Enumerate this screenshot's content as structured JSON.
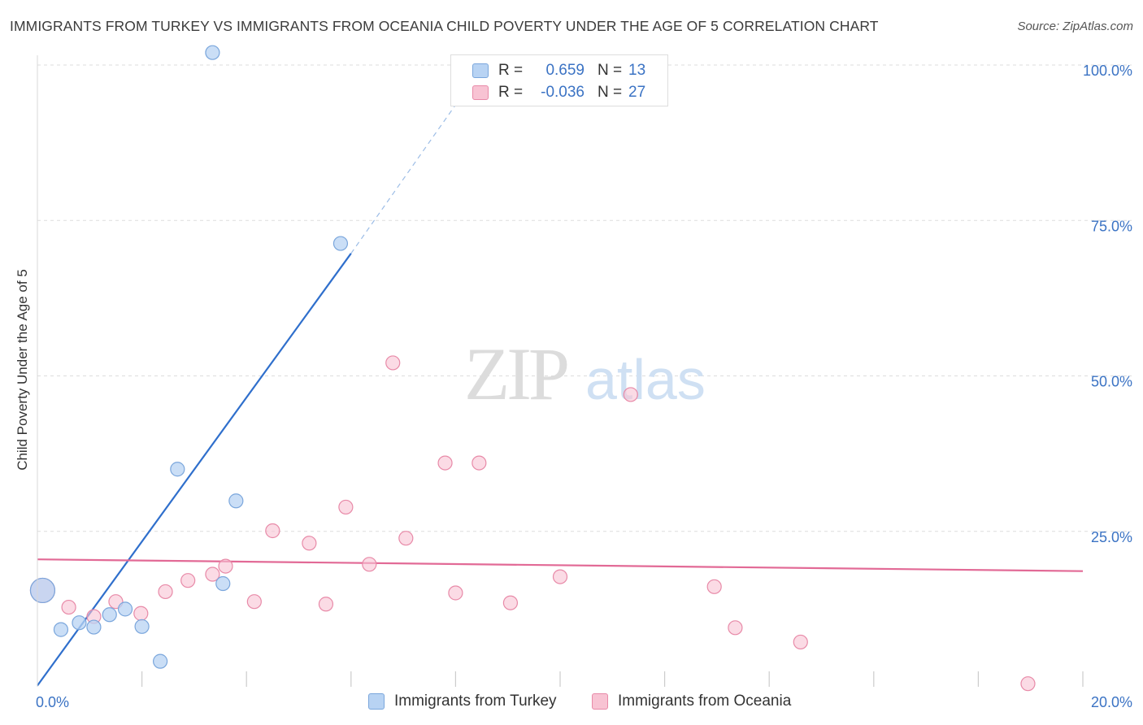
{
  "title": "IMMIGRANTS FROM TURKEY VS IMMIGRANTS FROM OCEANIA CHILD POVERTY UNDER THE AGE OF 5 CORRELATION CHART",
  "source": "Source: ZipAtlas.com",
  "watermark": {
    "zip": "ZIP",
    "atlas": "atlas"
  },
  "colors": {
    "turkey_fill": "#b8d3f3",
    "turkey_stroke": "#7aa6dc",
    "turkey_line": "#2f6fcc",
    "oceania_fill": "#f8c3d3",
    "oceania_stroke": "#e88aa8",
    "oceania_line": "#e26a96",
    "tick_label": "#3b73c4",
    "grid": "#dddddd"
  },
  "legend": {
    "r_label": "R =",
    "n_label": "N =",
    "rows": [
      {
        "r": "0.659",
        "n": "13"
      },
      {
        "r": "-0.036",
        "n": "27"
      }
    ]
  },
  "chart_data": {
    "type": "scatter",
    "title": "IMMIGRANTS FROM TURKEY VS IMMIGRANTS FROM OCEANIA CHILD POVERTY UNDER THE AGE OF 5 CORRELATION CHART",
    "xlabel": "",
    "ylabel": "Child Poverty Under the Age of 5",
    "xlim": [
      0,
      20
    ],
    "ylim": [
      0,
      100
    ],
    "x_tick_labels": [
      "0.0%",
      "20.0%"
    ],
    "y_ticks": [
      25,
      50,
      75,
      100
    ],
    "y_tick_labels": [
      "25.0%",
      "50.0%",
      "75.0%",
      "100.0%"
    ],
    "x_minor_ticks": [
      2,
      4,
      6,
      8,
      10,
      12,
      14,
      16,
      18,
      20
    ],
    "grid": true,
    "series": [
      {
        "name": "Immigrants from Turkey",
        "points": [
          {
            "x": 0.1,
            "y": 15.5,
            "size": "large"
          },
          {
            "x": 0.45,
            "y": 9.2
          },
          {
            "x": 0.8,
            "y": 10.3
          },
          {
            "x": 1.08,
            "y": 9.6
          },
          {
            "x": 1.38,
            "y": 11.6
          },
          {
            "x": 1.68,
            "y": 12.5
          },
          {
            "x": 2.0,
            "y": 9.7
          },
          {
            "x": 2.35,
            "y": 4.1
          },
          {
            "x": 2.68,
            "y": 35.0
          },
          {
            "x": 3.35,
            "y": 102.0
          },
          {
            "x": 3.55,
            "y": 16.6
          },
          {
            "x": 3.8,
            "y": 29.9
          },
          {
            "x": 5.8,
            "y": 71.3
          }
        ],
        "trendline": {
          "x0": 0.0,
          "y0": 0.2,
          "x1": 6.0,
          "y1": 69.7,
          "dashed_to": {
            "x": 8.0,
            "y": 93.6
          }
        }
      },
      {
        "name": "Immigrants from Oceania",
        "points": [
          {
            "x": 0.1,
            "y": 15.5,
            "size": "large"
          },
          {
            "x": 0.6,
            "y": 12.8
          },
          {
            "x": 1.08,
            "y": 11.3
          },
          {
            "x": 1.5,
            "y": 13.7
          },
          {
            "x": 1.98,
            "y": 11.8
          },
          {
            "x": 2.45,
            "y": 15.3
          },
          {
            "x": 2.88,
            "y": 17.1
          },
          {
            "x": 3.35,
            "y": 18.1
          },
          {
            "x": 3.6,
            "y": 19.4
          },
          {
            "x": 4.15,
            "y": 13.7
          },
          {
            "x": 4.5,
            "y": 25.1
          },
          {
            "x": 5.2,
            "y": 23.1
          },
          {
            "x": 5.52,
            "y": 13.3
          },
          {
            "x": 5.9,
            "y": 28.9
          },
          {
            "x": 6.35,
            "y": 19.7
          },
          {
            "x": 6.8,
            "y": 52.1
          },
          {
            "x": 7.05,
            "y": 23.9
          },
          {
            "x": 7.8,
            "y": 36.0
          },
          {
            "x": 8.0,
            "y": 15.1
          },
          {
            "x": 8.45,
            "y": 36.0
          },
          {
            "x": 9.05,
            "y": 13.5
          },
          {
            "x": 10.0,
            "y": 17.7
          },
          {
            "x": 11.35,
            "y": 47.0
          },
          {
            "x": 12.95,
            "y": 16.1
          },
          {
            "x": 13.35,
            "y": 9.5
          },
          {
            "x": 14.6,
            "y": 7.2
          },
          {
            "x": 18.95,
            "y": 0.5
          }
        ],
        "trendline": {
          "x0": 0.0,
          "y0": 20.5,
          "x1": 20.0,
          "y1": 18.6
        }
      }
    ]
  }
}
